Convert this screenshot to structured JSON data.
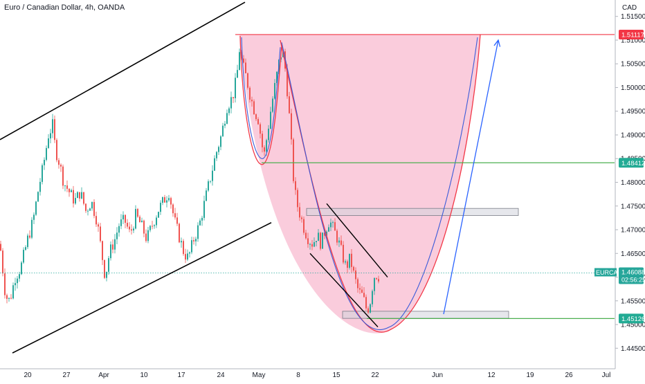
{
  "chart_data": {
    "type": "candlestick",
    "title": "Euro / Canadian Dollar, 4h, OANDA",
    "currency": "CAD",
    "symbol": "EURCAD",
    "current_price": "1.46088",
    "countdown": "02:56:25",
    "ylim": [
      1.443,
      1.517
    ],
    "y_ticks": [
      "1.44500",
      "1.45000",
      "1.45500",
      "1.46000",
      "1.46500",
      "1.47000",
      "1.47500",
      "1.48000",
      "1.48500",
      "1.49000",
      "1.49500",
      "1.50000",
      "1.50500",
      "1.51000",
      "1.51500"
    ],
    "x_ticks": [
      "20",
      "27",
      "Apr",
      "10",
      "17",
      "24",
      "May",
      "8",
      "15",
      "22",
      "Jun",
      "12",
      "19",
      "26",
      "Jul"
    ],
    "price_labels": [
      {
        "text": "1.51117",
        "value": 1.51117,
        "color": "#f23645"
      },
      {
        "text": "1.48412",
        "value": 1.48412,
        "color": "#22ab94"
      },
      {
        "text": "1.45126",
        "value": 1.45126,
        "color": "#22ab94"
      }
    ],
    "horizontal_levels": [
      {
        "value": 1.51117,
        "color": "#f23645"
      },
      {
        "value": 1.48412,
        "color": "#4caf50"
      },
      {
        "value": 1.45126,
        "color": "#4caf50"
      }
    ],
    "price_path": [
      [
        0,
        1.467
      ],
      [
        8,
        1.456
      ],
      [
        14,
        1.455
      ],
      [
        22,
        1.46
      ],
      [
        30,
        1.462
      ],
      [
        40,
        1.468
      ],
      [
        48,
        1.472
      ],
      [
        56,
        1.479
      ],
      [
        62,
        1.483
      ],
      [
        70,
        1.49
      ],
      [
        76,
        1.492
      ],
      [
        80,
        1.487
      ],
      [
        86,
        1.484
      ],
      [
        92,
        1.48
      ],
      [
        100,
        1.478
      ],
      [
        108,
        1.476
      ],
      [
        116,
        1.478
      ],
      [
        124,
        1.474
      ],
      [
        132,
        1.476
      ],
      [
        140,
        1.472
      ],
      [
        148,
        1.464
      ],
      [
        152,
        1.46
      ],
      [
        158,
        1.465
      ],
      [
        166,
        1.468
      ],
      [
        172,
        1.471
      ],
      [
        180,
        1.472
      ],
      [
        188,
        1.469
      ],
      [
        196,
        1.473
      ],
      [
        204,
        1.471
      ],
      [
        212,
        1.468
      ],
      [
        220,
        1.471
      ],
      [
        228,
        1.474
      ],
      [
        236,
        1.476
      ],
      [
        244,
        1.478
      ],
      [
        252,
        1.472
      ],
      [
        260,
        1.468
      ],
      [
        266,
        1.465
      ],
      [
        272,
        1.464
      ],
      [
        280,
        1.468
      ],
      [
        288,
        1.471
      ],
      [
        296,
        1.476
      ],
      [
        304,
        1.481
      ],
      [
        312,
        1.486
      ],
      [
        320,
        1.49
      ],
      [
        328,
        1.496
      ],
      [
        336,
        1.498
      ],
      [
        342,
        1.502
      ],
      [
        346,
        1.508
      ],
      [
        350,
        1.505
      ],
      [
        356,
        1.502
      ],
      [
        362,
        1.498
      ],
      [
        368,
        1.495
      ],
      [
        374,
        1.493
      ],
      [
        378,
        1.488
      ],
      [
        382,
        1.486
      ],
      [
        386,
        1.49
      ],
      [
        392,
        1.496
      ],
      [
        398,
        1.501
      ],
      [
        404,
        1.506
      ],
      [
        408,
        1.508
      ],
      [
        412,
        1.504
      ],
      [
        416,
        1.498
      ],
      [
        420,
        1.49
      ],
      [
        424,
        1.481
      ],
      [
        428,
        1.476
      ],
      [
        432,
        1.474
      ],
      [
        436,
        1.472
      ],
      [
        440,
        1.47
      ],
      [
        446,
        1.468
      ],
      [
        452,
        1.467
      ],
      [
        458,
        1.469
      ],
      [
        464,
        1.467
      ],
      [
        470,
        1.47
      ],
      [
        476,
        1.472
      ],
      [
        482,
        1.47
      ],
      [
        488,
        1.468
      ],
      [
        494,
        1.465
      ],
      [
        500,
        1.462
      ],
      [
        506,
        1.464
      ],
      [
        512,
        1.46
      ],
      [
        518,
        1.457
      ],
      [
        524,
        1.456
      ],
      [
        530,
        1.453
      ],
      [
        534,
        1.454
      ],
      [
        538,
        1.458
      ],
      [
        542,
        1.461
      ],
      [
        546,
        1.46
      ],
      [
        550,
        1.4609
      ]
    ],
    "drawings": {
      "channel_upper": [
        [
          0,
          1.489
        ],
        [
          354,
          1.518
        ]
      ],
      "channel_lower": [
        [
          18,
          1.444
        ],
        [
          392,
          1.4715
        ]
      ],
      "wedge_upper": [
        [
          472,
          1.4755
        ],
        [
          560,
          1.46
        ]
      ],
      "wedge_lower": [
        [
          448,
          1.465
        ],
        [
          546,
          1.4495
        ]
      ],
      "resistance_box": {
        "x1": 443,
        "x2": 749,
        "y1": 1.4745,
        "y2": 1.473,
        "color": "#d1d4dc"
      },
      "support_box": {
        "x1": 495,
        "x2": 735,
        "y1": 1.4528,
        "y2": 1.4513,
        "color": "#d1d4dc"
      },
      "projection_arrow": [
        [
          641,
          1.4522
        ],
        [
          720,
          1.51
        ]
      ],
      "cup_color": "#f48fb1",
      "cup_outline_color": "#f23645",
      "cup_inner_color": "#3a5bd9"
    },
    "colors": {
      "up": "#26a69a",
      "down": "#ef5350",
      "grid": "#ffffff",
      "axis": "#b2b5be"
    }
  }
}
